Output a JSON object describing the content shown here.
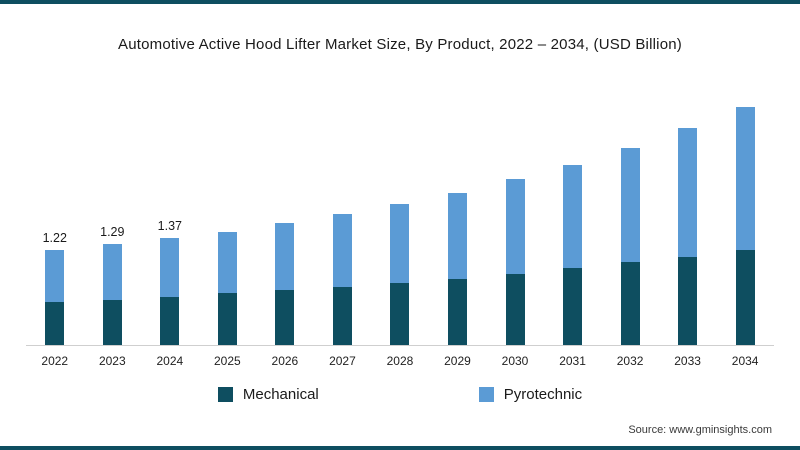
{
  "footer": {
    "source": "Source: www.gminsights.com"
  },
  "colors": {
    "mechanical": "#0e4e60",
    "pyrotechnic": "#5b9bd5",
    "frame_border": "#0e4e60",
    "axis_line": "#cfcfcf"
  },
  "chart_data": {
    "type": "bar",
    "stacked": true,
    "title": "Automotive Active Hood Lifter Market Size, By Product, 2022 – 2034, (USD Billion)",
    "xlabel": "",
    "ylabel": "USD Billion",
    "ylim": [
      0,
      3.2
    ],
    "grid": false,
    "legend_position": "bottom",
    "categories": [
      "2022",
      "2023",
      "2024",
      "2025",
      "2026",
      "2027",
      "2028",
      "2029",
      "2030",
      "2031",
      "2032",
      "2033",
      "2034"
    ],
    "series": [
      {
        "name": "Mechanical",
        "color": "#0e4e60",
        "values": [
          0.55,
          0.57,
          0.62,
          0.66,
          0.7,
          0.74,
          0.79,
          0.85,
          0.91,
          0.98,
          1.06,
          1.13,
          1.22
        ]
      },
      {
        "name": "Pyrotechnic",
        "color": "#5b9bd5",
        "values": [
          0.67,
          0.72,
          0.75,
          0.79,
          0.86,
          0.94,
          1.02,
          1.1,
          1.22,
          1.33,
          1.46,
          1.65,
          1.83
        ]
      }
    ],
    "totals": [
      1.22,
      1.29,
      1.37,
      1.45,
      1.56,
      1.68,
      1.81,
      1.95,
      2.13,
      2.31,
      2.52,
      2.78,
      3.05
    ],
    "value_labels": [
      "1.22",
      "1.29",
      "1.37",
      "",
      "",
      "",
      "",
      "",
      "",
      "",
      "",
      "",
      ""
    ]
  }
}
